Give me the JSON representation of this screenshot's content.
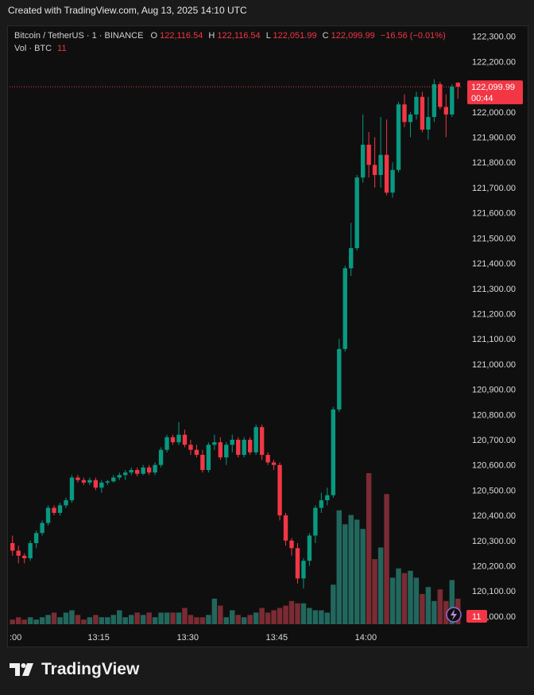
{
  "caption": "Created with TradingView.com, Aug 13, 2025 14:10 UTC",
  "legend": {
    "symbol": "Bitcoin / TetherUS · 1 · BINANCE",
    "o_label": "O",
    "o_value": "122,116.54",
    "h_label": "H",
    "h_value": "122,116.54",
    "l_label": "L",
    "l_value": "122,051.99",
    "c_label": "C",
    "c_value": "122,099.99",
    "change": "−16.56 (−0.01%)",
    "vol_label": "Vol · BTC",
    "vol_value": "11"
  },
  "price_badge": {
    "price": "122,099.99",
    "countdown": "00:44"
  },
  "volume_badge": "11",
  "brand": "TradingView",
  "colors": {
    "up": "#089981",
    "down": "#f23645",
    "up_volume": "#22675d",
    "down_volume": "#7b2b33",
    "price_line": "#f23645"
  },
  "chart_data": {
    "type": "candlestick",
    "symbol": "Bitcoin / TetherUS",
    "interval": "1",
    "exchange": "BINANCE",
    "x_ticks": [
      ":00",
      "13:15",
      "13:30",
      "13:45",
      "14:00"
    ],
    "y_ticks": [
      "122,300.00",
      "122,200.00",
      "122,100.00",
      "122,000.00",
      "121,900.00",
      "121,800.00",
      "121,700.00",
      "121,600.00",
      "121,500.00",
      "121,400.00",
      "121,300.00",
      "121,200.00",
      "121,100.00",
      "121,000.00",
      "120,900.00",
      "120,800.00",
      "120,700.00",
      "120,600.00",
      "120,500.00",
      "120,400.00",
      "120,300.00",
      "120,200.00",
      "120,100.00",
      "120,000.00"
    ],
    "ylim": [
      119880,
      122340
    ],
    "last_price": 122099.99,
    "candles": [
      {
        "o": 120290,
        "h": 120320,
        "l": 120240,
        "c": 120260,
        "v": 2
      },
      {
        "o": 120260,
        "h": 120280,
        "l": 120210,
        "c": 120240,
        "v": 3
      },
      {
        "o": 120240,
        "h": 120250,
        "l": 120210,
        "c": 120230,
        "v": 2
      },
      {
        "o": 120230,
        "h": 120300,
        "l": 120220,
        "c": 120290,
        "v": 3
      },
      {
        "o": 120290,
        "h": 120340,
        "l": 120270,
        "c": 120330,
        "v": 2
      },
      {
        "o": 120330,
        "h": 120380,
        "l": 120320,
        "c": 120370,
        "v": 3
      },
      {
        "o": 120370,
        "h": 120440,
        "l": 120360,
        "c": 120430,
        "v": 4
      },
      {
        "o": 120430,
        "h": 120440,
        "l": 120400,
        "c": 120410,
        "v": 5
      },
      {
        "o": 120410,
        "h": 120450,
        "l": 120400,
        "c": 120440,
        "v": 3
      },
      {
        "o": 120440,
        "h": 120470,
        "l": 120430,
        "c": 120460,
        "v": 5
      },
      {
        "o": 120460,
        "h": 120560,
        "l": 120450,
        "c": 120550,
        "v": 6
      },
      {
        "o": 120550,
        "h": 120560,
        "l": 120530,
        "c": 120540,
        "v": 4
      },
      {
        "o": 120540,
        "h": 120550,
        "l": 120520,
        "c": 120530,
        "v": 2
      },
      {
        "o": 120530,
        "h": 120550,
        "l": 120520,
        "c": 120540,
        "v": 3
      },
      {
        "o": 120540,
        "h": 120550,
        "l": 120500,
        "c": 120510,
        "v": 4
      },
      {
        "o": 120510,
        "h": 120540,
        "l": 120490,
        "c": 120530,
        "v": 3
      },
      {
        "o": 120530,
        "h": 120540,
        "l": 120520,
        "c": 120535,
        "v": 3
      },
      {
        "o": 120535,
        "h": 120560,
        "l": 120530,
        "c": 120550,
        "v": 4
      },
      {
        "o": 120550,
        "h": 120570,
        "l": 120540,
        "c": 120560,
        "v": 6
      },
      {
        "o": 120560,
        "h": 120580,
        "l": 120540,
        "c": 120570,
        "v": 3
      },
      {
        "o": 120570,
        "h": 120590,
        "l": 120560,
        "c": 120580,
        "v": 4
      },
      {
        "o": 120580,
        "h": 120590,
        "l": 120555,
        "c": 120565,
        "v": 5
      },
      {
        "o": 120565,
        "h": 120600,
        "l": 120560,
        "c": 120590,
        "v": 4
      },
      {
        "o": 120590,
        "h": 120600,
        "l": 120560,
        "c": 120570,
        "v": 5
      },
      {
        "o": 120570,
        "h": 120610,
        "l": 120560,
        "c": 120600,
        "v": 3
      },
      {
        "o": 120600,
        "h": 120670,
        "l": 120590,
        "c": 120660,
        "v": 5
      },
      {
        "o": 120660,
        "h": 120720,
        "l": 120650,
        "c": 120710,
        "v": 5
      },
      {
        "o": 120710,
        "h": 120720,
        "l": 120680,
        "c": 120690,
        "v": 5
      },
      {
        "o": 120690,
        "h": 120770,
        "l": 120680,
        "c": 120720,
        "v": 5
      },
      {
        "o": 120720,
        "h": 120740,
        "l": 120670,
        "c": 120680,
        "v": 7
      },
      {
        "o": 120680,
        "h": 120700,
        "l": 120640,
        "c": 120660,
        "v": 4
      },
      {
        "o": 120660,
        "h": 120680,
        "l": 120630,
        "c": 120640,
        "v": 3
      },
      {
        "o": 120640,
        "h": 120660,
        "l": 120570,
        "c": 120580,
        "v": 3
      },
      {
        "o": 120580,
        "h": 120690,
        "l": 120570,
        "c": 120680,
        "v": 4
      },
      {
        "o": 120680,
        "h": 120720,
        "l": 120660,
        "c": 120690,
        "v": 11
      },
      {
        "o": 120690,
        "h": 120710,
        "l": 120620,
        "c": 120630,
        "v": 8
      },
      {
        "o": 120630,
        "h": 120690,
        "l": 120600,
        "c": 120680,
        "v": 3
      },
      {
        "o": 120680,
        "h": 120720,
        "l": 120650,
        "c": 120700,
        "v": 6
      },
      {
        "o": 120700,
        "h": 120710,
        "l": 120630,
        "c": 120640,
        "v": 4
      },
      {
        "o": 120640,
        "h": 120710,
        "l": 120630,
        "c": 120700,
        "v": 3
      },
      {
        "o": 120700,
        "h": 120710,
        "l": 120640,
        "c": 120650,
        "v": 4
      },
      {
        "o": 120650,
        "h": 120760,
        "l": 120640,
        "c": 120750,
        "v": 5
      },
      {
        "o": 120750,
        "h": 120760,
        "l": 120620,
        "c": 120640,
        "v": 7
      },
      {
        "o": 120640,
        "h": 120650,
        "l": 120600,
        "c": 120610,
        "v": 5
      },
      {
        "o": 120610,
        "h": 120620,
        "l": 120580,
        "c": 120600,
        "v": 6
      },
      {
        "o": 120600,
        "h": 120610,
        "l": 120380,
        "c": 120400,
        "v": 7
      },
      {
        "o": 120400,
        "h": 120410,
        "l": 120280,
        "c": 120300,
        "v": 8
      },
      {
        "o": 120300,
        "h": 120310,
        "l": 120240,
        "c": 120270,
        "v": 10
      },
      {
        "o": 120270,
        "h": 120290,
        "l": 120130,
        "c": 120150,
        "v": 9
      },
      {
        "o": 120150,
        "h": 120230,
        "l": 120110,
        "c": 120220,
        "v": 9
      },
      {
        "o": 120220,
        "h": 120330,
        "l": 120200,
        "c": 120320,
        "v": 7
      },
      {
        "o": 120320,
        "h": 120440,
        "l": 120290,
        "c": 120430,
        "v": 6
      },
      {
        "o": 120430,
        "h": 120490,
        "l": 120410,
        "c": 120460,
        "v": 6
      },
      {
        "o": 120460,
        "h": 120510,
        "l": 120440,
        "c": 120480,
        "v": 5
      },
      {
        "o": 120480,
        "h": 120830,
        "l": 120470,
        "c": 120820,
        "v": 17
      },
      {
        "o": 120820,
        "h": 121100,
        "l": 120810,
        "c": 121060,
        "v": 49
      },
      {
        "o": 121060,
        "h": 121390,
        "l": 121050,
        "c": 121380,
        "v": 43
      },
      {
        "o": 121380,
        "h": 121560,
        "l": 121350,
        "c": 121460,
        "v": 47
      },
      {
        "o": 121460,
        "h": 121750,
        "l": 121450,
        "c": 121740,
        "v": 45
      },
      {
        "o": 121740,
        "h": 121990,
        "l": 121720,
        "c": 121870,
        "v": 41
      },
      {
        "o": 121870,
        "h": 121920,
        "l": 121740,
        "c": 121790,
        "v": 65
      },
      {
        "o": 121790,
        "h": 121900,
        "l": 121700,
        "c": 121750,
        "v": 28
      },
      {
        "o": 121750,
        "h": 121980,
        "l": 121700,
        "c": 121830,
        "v": 33
      },
      {
        "o": 121830,
        "h": 121970,
        "l": 121670,
        "c": 121680,
        "v": 56
      },
      {
        "o": 121680,
        "h": 121800,
        "l": 121660,
        "c": 121770,
        "v": 20
      },
      {
        "o": 121770,
        "h": 122040,
        "l": 121760,
        "c": 122030,
        "v": 24
      },
      {
        "o": 122030,
        "h": 122070,
        "l": 121940,
        "c": 121960,
        "v": 22
      },
      {
        "o": 121960,
        "h": 122000,
        "l": 121900,
        "c": 121990,
        "v": 23
      },
      {
        "o": 121990,
        "h": 122080,
        "l": 121970,
        "c": 122060,
        "v": 20
      },
      {
        "o": 122060,
        "h": 122080,
        "l": 121920,
        "c": 121930,
        "v": 13
      },
      {
        "o": 121930,
        "h": 122060,
        "l": 121890,
        "c": 121980,
        "v": 16
      },
      {
        "o": 121980,
        "h": 122130,
        "l": 121960,
        "c": 122110,
        "v": 10
      },
      {
        "o": 122110,
        "h": 122120,
        "l": 122010,
        "c": 122020,
        "v": 15
      },
      {
        "o": 122020,
        "h": 122070,
        "l": 121900,
        "c": 121990,
        "v": 10
      },
      {
        "o": 121990,
        "h": 122110,
        "l": 121980,
        "c": 122100,
        "v": 19
      },
      {
        "o": 122116.54,
        "h": 122116.54,
        "l": 122051.99,
        "c": 122099.99,
        "v": 11
      }
    ]
  }
}
